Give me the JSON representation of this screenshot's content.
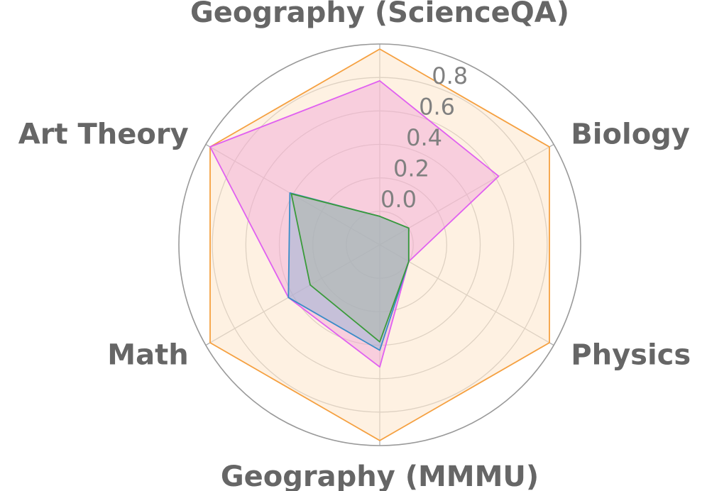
{
  "chart_data": {
    "type": "radar",
    "title": "",
    "categories": [
      "Geography (ScienceQA)",
      "Biology",
      "Physics",
      "Geography (MMMU)",
      "Math",
      "Art Theory"
    ],
    "rlim": [
      -0.2,
      1.0
    ],
    "rticks": [
      0.0,
      0.2,
      0.4,
      0.6,
      0.8
    ],
    "rtick_labels": [
      "0.0",
      "0.2",
      "0.4",
      "0.6",
      "0.8"
    ],
    "grid": true,
    "legend": "none",
    "series": [
      {
        "color": "#f5a040",
        "fill": "#fde8cf",
        "fill_opacity": 0.6,
        "values": [
          0.97,
          0.97,
          0.97,
          0.97,
          0.97,
          0.97
        ]
      },
      {
        "color": "#e060f0",
        "fill": "#f2a4d8",
        "fill_opacity": 0.45,
        "values": [
          0.78,
          0.62,
          0.0,
          0.53,
          0.43,
          0.97
        ]
      },
      {
        "color": "#3a8cc8",
        "fill": "#8ab0d4",
        "fill_opacity": 0.45,
        "values": [
          -0.03,
          0.0,
          0.0,
          0.43,
          0.43,
          0.42
        ]
      },
      {
        "color": "#3a9a3a",
        "fill": "#aab8a8",
        "fill_opacity": 0.5,
        "values": [
          -0.03,
          0.0,
          0.0,
          0.38,
          0.28,
          0.41
        ]
      }
    ]
  }
}
